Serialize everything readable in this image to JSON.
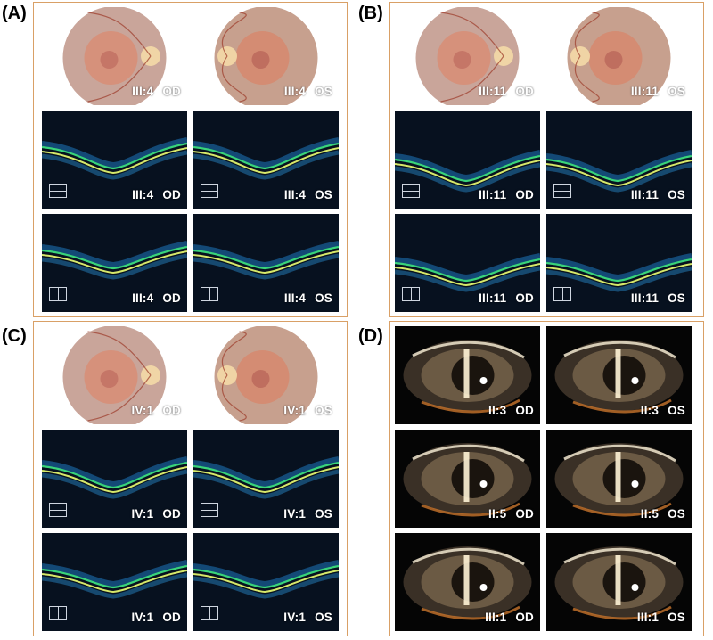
{
  "panels": {
    "A": {
      "label": "(A)",
      "captions": [
        {
          "id": "III:4",
          "eye": "OD"
        },
        {
          "id": "III:4",
          "eye": "OS"
        },
        {
          "id": "III:4",
          "eye": "OD"
        },
        {
          "id": "III:4",
          "eye": "OS"
        },
        {
          "id": "III:4",
          "eye": "OD"
        },
        {
          "id": "III:4",
          "eye": "OS"
        }
      ]
    },
    "B": {
      "label": "(B)",
      "captions": [
        {
          "id": "III:11",
          "eye": "OD"
        },
        {
          "id": "III:11",
          "eye": "OS"
        },
        {
          "id": "III:11",
          "eye": "OD"
        },
        {
          "id": "III:11",
          "eye": "OS"
        },
        {
          "id": "III:11",
          "eye": "OD"
        },
        {
          "id": "III:11",
          "eye": "OS"
        }
      ]
    },
    "C": {
      "label": "(C)",
      "captions": [
        {
          "id": "IV:1",
          "eye": "OD"
        },
        {
          "id": "IV:1",
          "eye": "OS"
        },
        {
          "id": "IV:1",
          "eye": "OD"
        },
        {
          "id": "IV:1",
          "eye": "OS"
        },
        {
          "id": "IV:1",
          "eye": "OD"
        },
        {
          "id": "IV:1",
          "eye": "OS"
        }
      ]
    },
    "D": {
      "label": "(D)",
      "captions": [
        {
          "id": "II:3",
          "eye": "OD"
        },
        {
          "id": "II:3",
          "eye": "OS"
        },
        {
          "id": "II:5",
          "eye": "OD"
        },
        {
          "id": "II:5",
          "eye": "OS"
        },
        {
          "id": "III:1",
          "eye": "OD"
        },
        {
          "id": "III:1",
          "eye": "OS"
        }
      ]
    }
  },
  "colors": {
    "frame": "#d9a066",
    "oct_background": "#07111f",
    "oct_layer": "#39d47a",
    "fundus": "#c98a6a"
  }
}
